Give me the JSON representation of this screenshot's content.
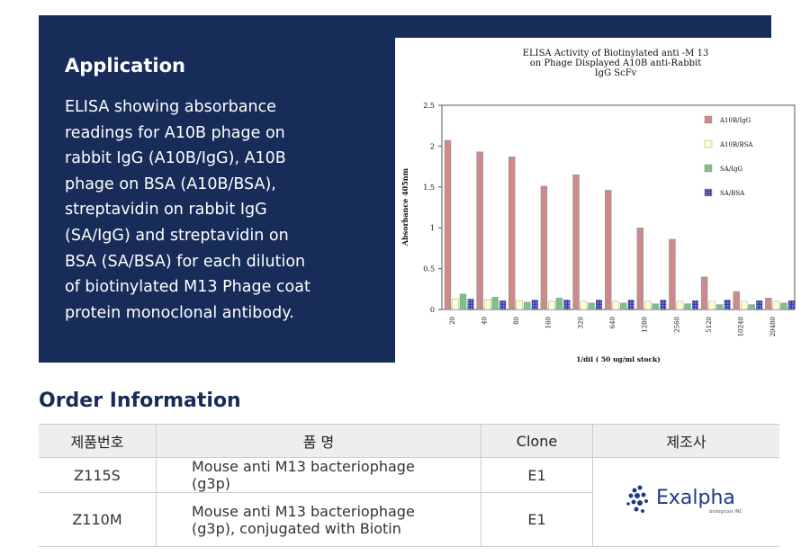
{
  "application": {
    "title": "Application",
    "body_lines": [
      "ELISA showing absorbance",
      "readings for A10B phage on",
      "rabbit IgG (A10B/IgG), A10B",
      "phage on BSA (A10B/BSA),",
      "streptavidin on rabbit IgG",
      "(SA/IgG) and streptavidin on",
      "BSA (SA/BSA) for each dilution",
      "of biotinylated M13 Phage coat",
      "protein monoclonal antibody."
    ]
  },
  "chart_data": {
    "type": "bar",
    "title": [
      "ELISA Activity of Biotinylated anti -M 13",
      "on Phage Displayed A10B anti-Rabbit",
      "IgG ScFv"
    ],
    "y_label": "Absorbance 405nm",
    "x_label": "1/dil ( 50 ug/ml stock)",
    "categories": [
      "20",
      "40",
      "80",
      "160",
      "320",
      "640",
      "1280",
      "2560",
      "5120",
      "10240",
      "20480"
    ],
    "series": [
      {
        "name": "A10B/IgG",
        "color": "#c98b8b",
        "values": [
          2.07,
          1.93,
          1.87,
          1.51,
          1.65,
          1.46,
          1.0,
          0.86,
          0.4,
          0.22,
          0.14
        ]
      },
      {
        "name": "A10B/BSA",
        "color": "#ffffcc",
        "values": [
          0.13,
          0.12,
          0.11,
          0.1,
          0.1,
          0.1,
          0.1,
          0.1,
          0.1,
          0.1,
          0.1
        ]
      },
      {
        "name": "SA/IgG",
        "color": "#7fbf8a",
        "values": [
          0.19,
          0.15,
          0.09,
          0.14,
          0.08,
          0.08,
          0.07,
          0.07,
          0.06,
          0.06,
          0.08
        ]
      },
      {
        "name": "SA/BSA",
        "color": "#3a3fa8",
        "values": [
          0.13,
          0.11,
          0.12,
          0.12,
          0.12,
          0.12,
          0.12,
          0.11,
          0.12,
          0.11,
          0.11
        ]
      }
    ],
    "ylim": [
      0,
      2.5
    ],
    "yticks": [
      0,
      0.5,
      1,
      1.5,
      2,
      2.5
    ],
    "legend": "upper right"
  },
  "order": {
    "title": "Order Information",
    "headers": [
      "제품번호",
      "품  명",
      "Clone",
      "제조사"
    ],
    "rows": [
      [
        "Z115S",
        "Mouse anti M13 bacteriophage (g3p)",
        "E1"
      ],
      [
        "Z110M",
        "Mouse anti M13 bacteriophage (g3p), conjugated with Biotin",
        "E1"
      ]
    ],
    "maker": {
      "name": "Exalpha",
      "tagline": "biologicals INC"
    }
  }
}
